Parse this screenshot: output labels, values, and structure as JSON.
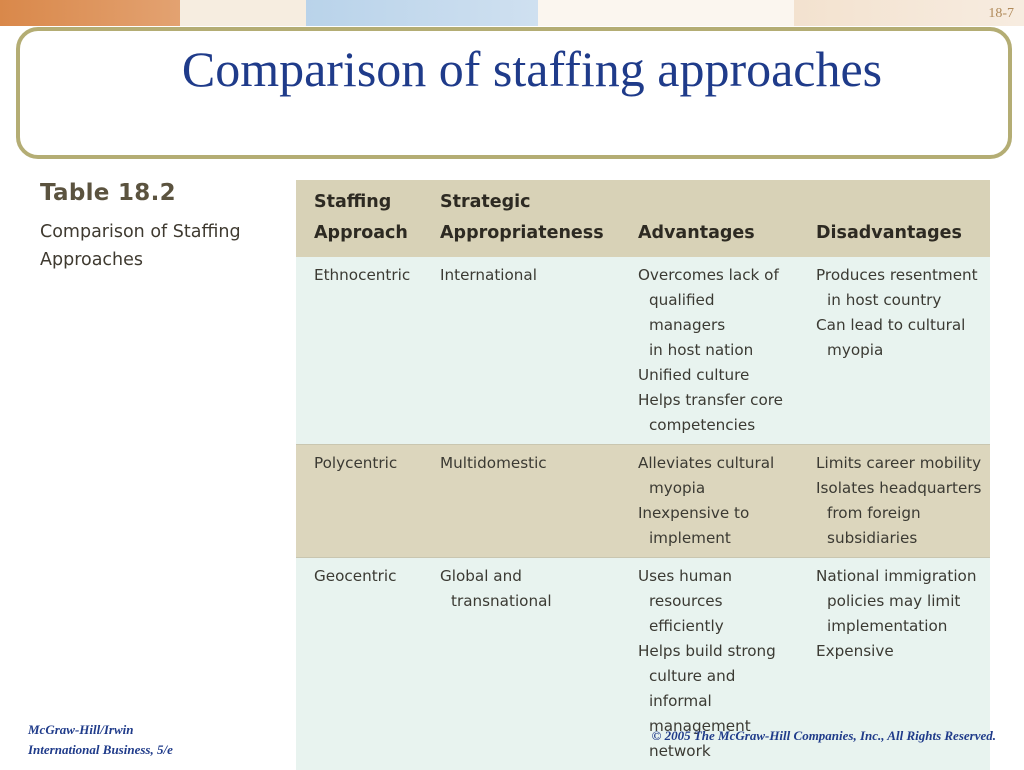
{
  "slide": {
    "number": "18-7",
    "title": "Comparison of staffing approaches"
  },
  "caption": {
    "number": "Table 18.2",
    "text": "Comparison of Staffing Approaches"
  },
  "table": {
    "headers": [
      [
        "Staffing",
        "Approach"
      ],
      [
        "Strategic",
        "Appropriateness"
      ],
      [
        "Advantages"
      ],
      [
        "Disadvantages"
      ]
    ],
    "rows": [
      {
        "approach": "Ethnocentric",
        "appropriateness": [
          "International"
        ],
        "advantages": [
          [
            "Overcomes lack of",
            "qualified managers",
            "in host nation"
          ],
          [
            "Unified culture"
          ],
          [
            "Helps transfer core",
            "competencies"
          ]
        ],
        "disadvantages": [
          [
            "Produces resentment",
            "in host country"
          ],
          [
            "Can lead to cultural",
            "myopia"
          ]
        ]
      },
      {
        "approach": "Polycentric",
        "appropriateness": [
          "Multidomestic"
        ],
        "advantages": [
          [
            "Alleviates cultural",
            "myopia"
          ],
          [
            "Inexpensive to",
            "implement"
          ]
        ],
        "disadvantages": [
          [
            "Limits career mobility"
          ],
          [
            "Isolates headquarters",
            "from foreign",
            "subsidiaries"
          ]
        ]
      },
      {
        "approach": "Geocentric",
        "appropriateness": [
          "Global and",
          "transnational"
        ],
        "advantages": [
          [
            "Uses human",
            "resources efficiently"
          ],
          [
            "Helps build strong",
            "culture and informal",
            "management",
            "network"
          ]
        ],
        "disadvantages": [
          [
            "National immigration",
            "policies may limit",
            "implementation"
          ],
          [
            "Expensive"
          ]
        ]
      }
    ]
  },
  "footer": {
    "publisher": "McGraw-Hill/Irwin",
    "book": "International Business, 5/e",
    "copyright": "© 2005 The McGraw-Hill Companies, Inc., All Rights Reserved."
  }
}
